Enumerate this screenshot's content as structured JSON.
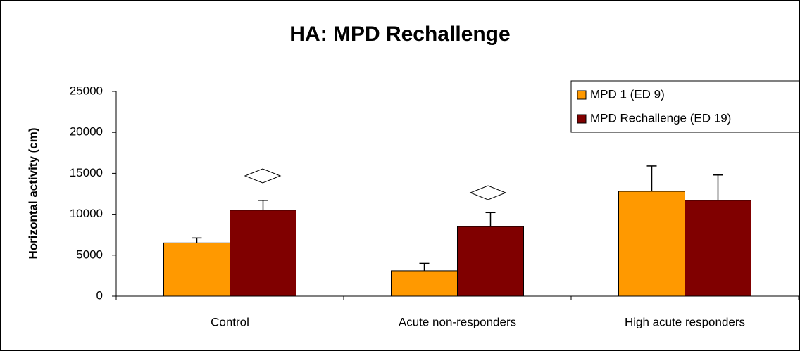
{
  "chart_data": {
    "type": "bar",
    "title": "HA: MPD Rechallenge",
    "y_label": "Horizontal activity (cm)",
    "categories": [
      "Control",
      "Acute non-responders",
      "High acute responders"
    ],
    "series": [
      {
        "name": "MPD 1 (ED 9)",
        "color": "#ff9900",
        "values": [
          6500,
          3100,
          12800
        ],
        "errors": [
          600,
          900,
          3100
        ]
      },
      {
        "name": "MPD Rechallenge (ED 19)",
        "color": "#800000",
        "values": [
          10500,
          8500,
          11700
        ],
        "errors": [
          1200,
          1700,
          3100
        ]
      }
    ],
    "ylim": [
      0,
      25000
    ],
    "yticks": [
      0,
      5000,
      10000,
      15000,
      20000,
      25000
    ],
    "legend": "top-right"
  }
}
